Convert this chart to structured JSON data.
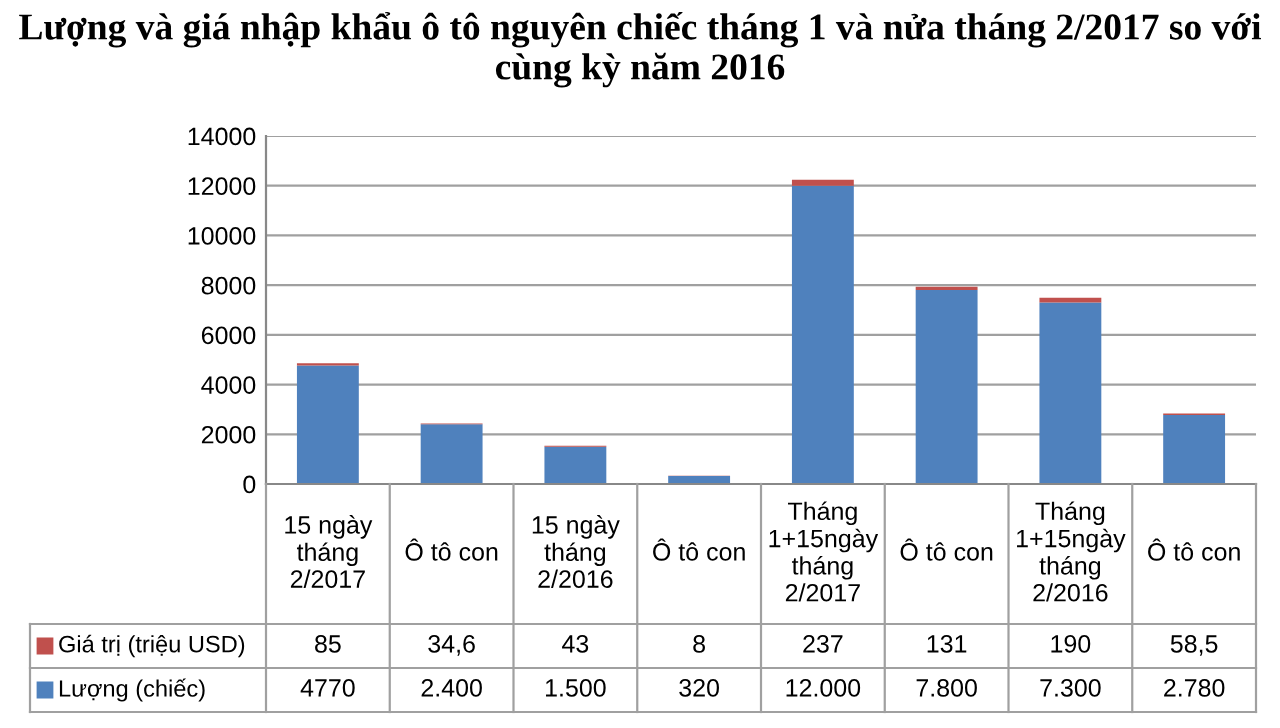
{
  "chart_data": {
    "type": "bar",
    "stacked": true,
    "title": "Lượng và giá nhập khẩu ô tô nguyên chiếc tháng 1 và nửa tháng 2/2017 so với cùng kỳ năm 2016",
    "categories": [
      "15 ngày tháng 2/2017",
      "Ô tô con",
      "15 ngày tháng 2/2016",
      "Ô tô con",
      "Tháng 1+15ngày tháng 2/2017",
      "Ô tô con",
      "Tháng 1+15ngày tháng 2/2016",
      "Ô tô con"
    ],
    "series": [
      {
        "name": "Lượng (chiếc)",
        "color": "#4f81bd",
        "values": [
          4770,
          2400,
          1500,
          320,
          12000,
          7800,
          7300,
          2780
        ],
        "value_labels": [
          "4770",
          "2.400",
          "1.500",
          "320",
          "12.000",
          "7.800",
          "7.300",
          "2.780"
        ]
      },
      {
        "name": "Giá trị (triệu USD)",
        "color": "#c0504d",
        "values": [
          85,
          34.6,
          43,
          8,
          237,
          131,
          190,
          58.5
        ],
        "value_labels": [
          "85",
          "34,6",
          "43",
          "8",
          "237",
          "131",
          "190",
          "58,5"
        ]
      }
    ],
    "ylim": [
      0,
      14000
    ],
    "yticks": [
      0,
      2000,
      4000,
      6000,
      8000,
      10000,
      12000,
      14000
    ],
    "grid": "y",
    "legend": "bottom left"
  }
}
